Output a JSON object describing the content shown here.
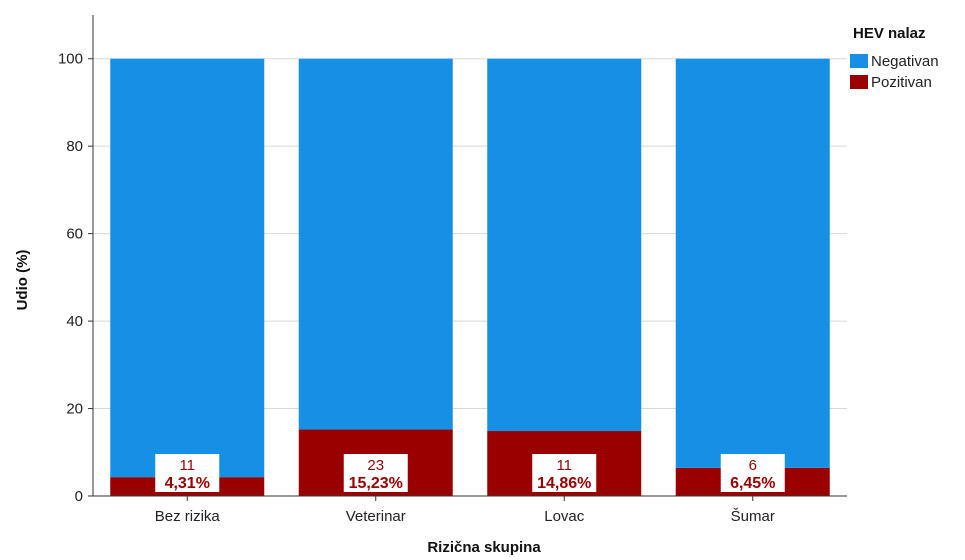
{
  "chart_data": {
    "type": "bar",
    "stacked": true,
    "categories": [
      "Bez rizika",
      "Veterinar",
      "Lovac",
      "Šumar"
    ],
    "series": [
      {
        "name": "Negativan",
        "values": [
          95.69,
          84.77,
          85.14,
          93.55
        ],
        "color": "#1590E4"
      },
      {
        "name": "Pozitivan",
        "values": [
          4.31,
          15.23,
          14.86,
          6.45
        ],
        "color": "#990000",
        "data_labels": [
          {
            "count": "11",
            "percent": "4,31%"
          },
          {
            "count": "23",
            "percent": "15,23%"
          },
          {
            "count": "11",
            "percent": "14,86%"
          },
          {
            "count": "6",
            "percent": "6,45%"
          }
        ]
      }
    ],
    "xlabel": "Rizična skupina",
    "ylabel": "Udio (%)",
    "ylim": [
      0,
      110
    ],
    "yticks": [
      "0",
      "20",
      "40",
      "60",
      "80",
      "100"
    ],
    "grid": true,
    "legend": {
      "title": "HEV nalaz",
      "placement": "top-right"
    }
  }
}
